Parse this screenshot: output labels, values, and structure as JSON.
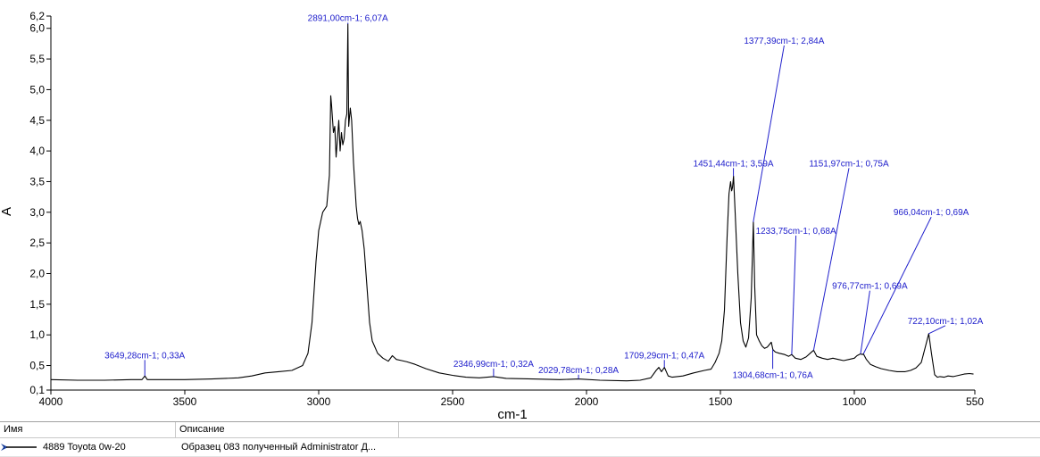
{
  "chart_data": {
    "type": "line",
    "title": "",
    "xlabel": "cm-1",
    "ylabel": "A",
    "xlim": [
      4000,
      550
    ],
    "ylim": [
      0.1,
      6.2
    ],
    "x_ticks": [
      4000,
      3500,
      3000,
      2500,
      2000,
      1500,
      1000,
      550
    ],
    "x_tick_labels": [
      "4000",
      "3500",
      "3000",
      "2500",
      "2000",
      "1500",
      "1000",
      "550"
    ],
    "y_ticks": [
      0.1,
      0.5,
      1.0,
      1.5,
      2.0,
      2.5,
      3.0,
      3.5,
      4.0,
      4.5,
      5.0,
      5.5,
      6.0,
      6.2
    ],
    "y_tick_labels": [
      "0,1",
      "0,5",
      "1,0",
      "1,5",
      "2,0",
      "2,5",
      "3,0",
      "3,5",
      "4,0",
      "4,5",
      "5,0",
      "5,5",
      "6,0",
      "6,2"
    ],
    "grid": false,
    "series": [
      {
        "name": "4889 Toyota 0w-20",
        "color": "#000000",
        "points": [
          [
            4000,
            0.27
          ],
          [
            3900,
            0.26
          ],
          [
            3800,
            0.26
          ],
          [
            3700,
            0.27
          ],
          [
            3660,
            0.27
          ],
          [
            3649,
            0.33
          ],
          [
            3640,
            0.27
          ],
          [
            3500,
            0.27
          ],
          [
            3400,
            0.28
          ],
          [
            3300,
            0.3
          ],
          [
            3250,
            0.33
          ],
          [
            3200,
            0.38
          ],
          [
            3150,
            0.4
          ],
          [
            3100,
            0.42
          ],
          [
            3060,
            0.5
          ],
          [
            3040,
            0.7
          ],
          [
            3025,
            1.2
          ],
          [
            3010,
            2.2
          ],
          [
            3000,
            2.7
          ],
          [
            2985,
            3.0
          ],
          [
            2970,
            3.1
          ],
          [
            2960,
            3.6
          ],
          [
            2955,
            4.9
          ],
          [
            2952,
            4.75
          ],
          [
            2945,
            4.3
          ],
          [
            2940,
            4.4
          ],
          [
            2935,
            3.9
          ],
          [
            2930,
            4.2
          ],
          [
            2925,
            4.5
          ],
          [
            2920,
            4.0
          ],
          [
            2915,
            4.3
          ],
          [
            2910,
            4.1
          ],
          [
            2905,
            4.2
          ],
          [
            2900,
            4.5
          ],
          [
            2895,
            4.6
          ],
          [
            2891,
            6.07
          ],
          [
            2888,
            4.4
          ],
          [
            2882,
            4.7
          ],
          [
            2877,
            4.5
          ],
          [
            2870,
            3.8
          ],
          [
            2860,
            3.1
          ],
          [
            2855,
            2.9
          ],
          [
            2850,
            2.8
          ],
          [
            2845,
            2.85
          ],
          [
            2838,
            2.7
          ],
          [
            2830,
            2.4
          ],
          [
            2820,
            1.8
          ],
          [
            2810,
            1.2
          ],
          [
            2800,
            0.9
          ],
          [
            2780,
            0.7
          ],
          [
            2760,
            0.62
          ],
          [
            2740,
            0.57
          ],
          [
            2725,
            0.66
          ],
          [
            2710,
            0.6
          ],
          [
            2690,
            0.58
          ],
          [
            2670,
            0.56
          ],
          [
            2640,
            0.52
          ],
          [
            2600,
            0.45
          ],
          [
            2550,
            0.38
          ],
          [
            2500,
            0.34
          ],
          [
            2450,
            0.31
          ],
          [
            2400,
            0.3
          ],
          [
            2347,
            0.32
          ],
          [
            2300,
            0.29
          ],
          [
            2200,
            0.28
          ],
          [
            2100,
            0.27
          ],
          [
            2030,
            0.28
          ],
          [
            1950,
            0.26
          ],
          [
            1850,
            0.25
          ],
          [
            1800,
            0.26
          ],
          [
            1760,
            0.3
          ],
          [
            1740,
            0.42
          ],
          [
            1730,
            0.47
          ],
          [
            1720,
            0.4
          ],
          [
            1709,
            0.47
          ],
          [
            1695,
            0.33
          ],
          [
            1680,
            0.31
          ],
          [
            1640,
            0.33
          ],
          [
            1600,
            0.38
          ],
          [
            1560,
            0.42
          ],
          [
            1535,
            0.44
          ],
          [
            1520,
            0.55
          ],
          [
            1505,
            0.7
          ],
          [
            1495,
            0.9
          ],
          [
            1485,
            1.4
          ],
          [
            1475,
            2.6
          ],
          [
            1468,
            3.3
          ],
          [
            1462,
            3.5
          ],
          [
            1458,
            3.35
          ],
          [
            1455,
            3.4
          ],
          [
            1451,
            3.59
          ],
          [
            1445,
            3.0
          ],
          [
            1435,
            2.0
          ],
          [
            1425,
            1.2
          ],
          [
            1415,
            0.9
          ],
          [
            1405,
            0.8
          ],
          [
            1395,
            0.95
          ],
          [
            1385,
            1.6
          ],
          [
            1377,
            2.84
          ],
          [
            1372,
            1.8
          ],
          [
            1365,
            1.0
          ],
          [
            1355,
            0.9
          ],
          [
            1345,
            0.82
          ],
          [
            1335,
            0.78
          ],
          [
            1325,
            0.8
          ],
          [
            1310,
            0.88
          ],
          [
            1304,
            0.76
          ],
          [
            1295,
            0.72
          ],
          [
            1280,
            0.7
          ],
          [
            1260,
            0.68
          ],
          [
            1245,
            0.65
          ],
          [
            1234,
            0.68
          ],
          [
            1220,
            0.62
          ],
          [
            1200,
            0.6
          ],
          [
            1180,
            0.64
          ],
          [
            1165,
            0.7
          ],
          [
            1152,
            0.75
          ],
          [
            1140,
            0.65
          ],
          [
            1120,
            0.62
          ],
          [
            1100,
            0.6
          ],
          [
            1080,
            0.62
          ],
          [
            1060,
            0.6
          ],
          [
            1040,
            0.58
          ],
          [
            1020,
            0.6
          ],
          [
            1000,
            0.62
          ],
          [
            990,
            0.66
          ],
          [
            977,
            0.69
          ],
          [
            970,
            0.68
          ],
          [
            966,
            0.69
          ],
          [
            955,
            0.6
          ],
          [
            940,
            0.52
          ],
          [
            920,
            0.48
          ],
          [
            900,
            0.45
          ],
          [
            870,
            0.42
          ],
          [
            840,
            0.4
          ],
          [
            810,
            0.4
          ],
          [
            790,
            0.42
          ],
          [
            770,
            0.46
          ],
          [
            750,
            0.55
          ],
          [
            735,
            0.8
          ],
          [
            722,
            1.02
          ],
          [
            712,
            0.7
          ],
          [
            700,
            0.35
          ],
          [
            690,
            0.31
          ],
          [
            680,
            0.32
          ],
          [
            665,
            0.31
          ],
          [
            650,
            0.33
          ],
          [
            630,
            0.32
          ],
          [
            610,
            0.34
          ],
          [
            590,
            0.36
          ],
          [
            570,
            0.37
          ],
          [
            555,
            0.36
          ]
        ]
      }
    ],
    "annotations": [
      {
        "label": "3649,28cm-1; 0,33A",
        "x": 3649.28,
        "y": 0.33,
        "label_anchor": [
          3649.28,
          0.62
        ]
      },
      {
        "label": "2891,00cm-1; 6,07A",
        "x": 2891.0,
        "y": 6.07,
        "label_anchor": [
          2891.0,
          6.12
        ]
      },
      {
        "label": "2346,99cm-1; 0,32A",
        "x": 2346.99,
        "y": 0.32,
        "label_anchor": [
          2346.99,
          0.48
        ]
      },
      {
        "label": "2029,78cm-1; 0,28A",
        "x": 2029.78,
        "y": 0.28,
        "label_anchor": [
          2029.78,
          0.38
        ]
      },
      {
        "label": "1709,29cm-1; 0,47A",
        "x": 1709.29,
        "y": 0.47,
        "label_anchor": [
          1709.29,
          0.62
        ]
      },
      {
        "label": "1451,44cm-1; 3,59A",
        "x": 1451.44,
        "y": 3.59,
        "label_anchor": [
          1451.44,
          3.75
        ]
      },
      {
        "label": "1377,39cm-1; 2,84A",
        "x": 1377.39,
        "y": 2.84,
        "label_anchor": [
          1262.0,
          5.75
        ]
      },
      {
        "label": "1304,68cm-1; 0,76A",
        "x": 1304.68,
        "y": 0.76,
        "label_anchor": [
          1304.68,
          0.3
        ]
      },
      {
        "label": "1233,75cm-1; 0,68A",
        "x": 1233.75,
        "y": 0.68,
        "label_anchor": [
          1218.0,
          2.65
        ]
      },
      {
        "label": "1151,97cm-1; 0,75A",
        "x": 1151.97,
        "y": 0.75,
        "label_anchor": [
          1020.0,
          3.75
        ]
      },
      {
        "label": "976,77cm-1; 0,69A",
        "x": 976.77,
        "y": 0.69,
        "label_anchor": [
          942.0,
          1.75
        ]
      },
      {
        "label": "966,04cm-1; 0,69A",
        "x": 966.04,
        "y": 0.69,
        "label_anchor": [
          713.0,
          2.95
        ]
      },
      {
        "label": "722,10cm-1; 1,02A",
        "x": 722.1,
        "y": 1.02,
        "label_anchor": [
          660.0,
          1.18
        ]
      }
    ]
  },
  "legend_table": {
    "columns": [
      "Имя",
      "Описание"
    ],
    "rows": [
      {
        "name": "4889 Toyota 0w-20",
        "description": "Образец 083 полученный Administrator Д..."
      }
    ]
  }
}
